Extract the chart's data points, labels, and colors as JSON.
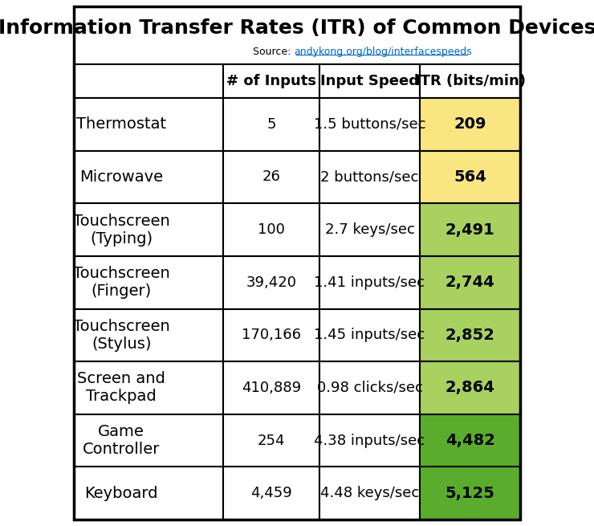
{
  "title": "Information Transfer Rates (ITR) of Common Devices",
  "source_text": "Source: ",
  "source_link": "andykong.org/blog/interfacespeeds",
  "col_headers": [
    "# of Inputs",
    "Input Speed",
    "ITR (bits/min)"
  ],
  "rows": [
    {
      "device": "Thermostat",
      "inputs": "5",
      "speed": "1.5 buttons/sec",
      "itr": "209",
      "itr_color": "#FAE680"
    },
    {
      "device": "Microwave",
      "inputs": "26",
      "speed": "2 buttons/sec",
      "itr": "564",
      "itr_color": "#FAE680"
    },
    {
      "device": "Touchscreen\n(Typing)",
      "inputs": "100",
      "speed": "2.7 keys/sec",
      "itr": "2,491",
      "itr_color": "#A8D160"
    },
    {
      "device": "Touchscreen\n(Finger)",
      "inputs": "39,420",
      "speed": "1.41 inputs/sec",
      "itr": "2,744",
      "itr_color": "#A8D160"
    },
    {
      "device": "Touchscreen\n(Stylus)",
      "inputs": "170,166",
      "speed": "1.45 inputs/sec",
      "itr": "2,852",
      "itr_color": "#A8D160"
    },
    {
      "device": "Screen and\nTrackpad",
      "inputs": "410,889",
      "speed": "0.98 clicks/sec",
      "itr": "2,864",
      "itr_color": "#A8D160"
    },
    {
      "device": "Game\nController",
      "inputs": "254",
      "speed": "4.38 inputs/sec",
      "itr": "4,482",
      "itr_color": "#5AAD2C"
    },
    {
      "device": "Keyboard",
      "inputs": "4,459",
      "speed": "4.48 keys/sec",
      "itr": "5,125",
      "itr_color": "#5AAD2C"
    }
  ],
  "title_bg": "#FFFFFF",
  "header_bg": "#FFFFFF",
  "row_bg": "#FFFFFF",
  "border_color": "#000000",
  "title_fontsize": 18,
  "header_fontsize": 13,
  "cell_fontsize": 13,
  "device_fontsize": 14
}
